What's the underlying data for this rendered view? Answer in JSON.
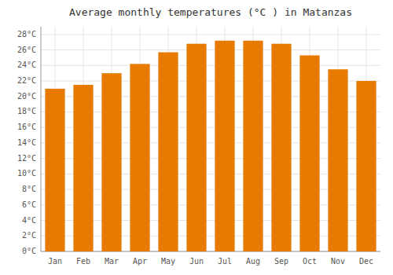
{
  "chart_data": {
    "type": "bar",
    "title": "Average monthly temperatures (°C ) in Matanzas",
    "categories": [
      "Jan",
      "Feb",
      "Mar",
      "Apr",
      "May",
      "Jun",
      "Jul",
      "Aug",
      "Sep",
      "Oct",
      "Nov",
      "Dec"
    ],
    "values": [
      21.0,
      21.5,
      23.0,
      24.2,
      25.7,
      26.8,
      27.2,
      27.2,
      26.8,
      25.3,
      23.5,
      22.0
    ],
    "color": "#E87A00",
    "ylim": [
      0,
      29
    ],
    "yticks": [
      {
        "value": 0,
        "label": "0°C"
      },
      {
        "value": 2,
        "label": "2°C"
      },
      {
        "value": 4,
        "label": "4°C"
      },
      {
        "value": 6,
        "label": "6°C"
      },
      {
        "value": 8,
        "label": "8°C"
      },
      {
        "value": 10,
        "label": "10°C"
      },
      {
        "value": 12,
        "label": "12°C"
      },
      {
        "value": 14,
        "label": "14°C"
      },
      {
        "value": 16,
        "label": "16°C"
      },
      {
        "value": 18,
        "label": "18°C"
      },
      {
        "value": 20,
        "label": "20°C"
      },
      {
        "value": 22,
        "label": "22°C"
      },
      {
        "value": 24,
        "label": "24°C"
      },
      {
        "value": 26,
        "label": "26°C"
      },
      {
        "value": 28,
        "label": "28°C"
      }
    ],
    "grid": true
  }
}
